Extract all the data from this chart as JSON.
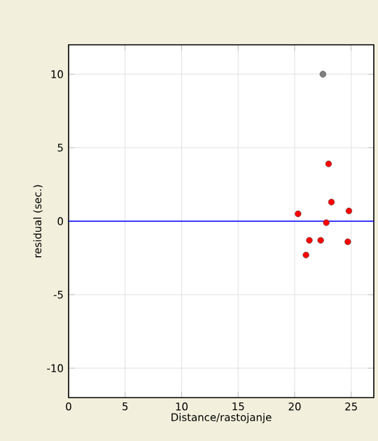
{
  "chart_data": {
    "type": "scatter",
    "xlabel": "Distance/rastojanje",
    "ylabel": "residual (sec.)",
    "x": [
      22.5,
      23.0,
      23.25,
      20.3,
      24.8,
      22.8,
      21.3,
      22.3,
      24.7,
      21.0
    ],
    "values": [
      10.0,
      3.9,
      1.3,
      0.5,
      0.7,
      -0.1,
      -1.3,
      -1.3,
      -1.4,
      -2.3
    ],
    "colors": [
      "#808080",
      "#ff0000",
      "#ff0000",
      "#ff0000",
      "#ff0000",
      "#ff0000",
      "#ff0000",
      "#ff0000",
      "#ff0000",
      "#ff0000"
    ],
    "marker": "circle",
    "grid": true,
    "xlim": [
      0,
      27
    ],
    "ylim": [
      -12,
      12
    ],
    "xticks": [
      0,
      5,
      10,
      15,
      20,
      25
    ],
    "yticks": [
      -10,
      -5,
      0,
      5,
      10
    ],
    "ref_lines": [
      {
        "axis": "y",
        "value": 0,
        "color": "#0000ff"
      }
    ]
  }
}
